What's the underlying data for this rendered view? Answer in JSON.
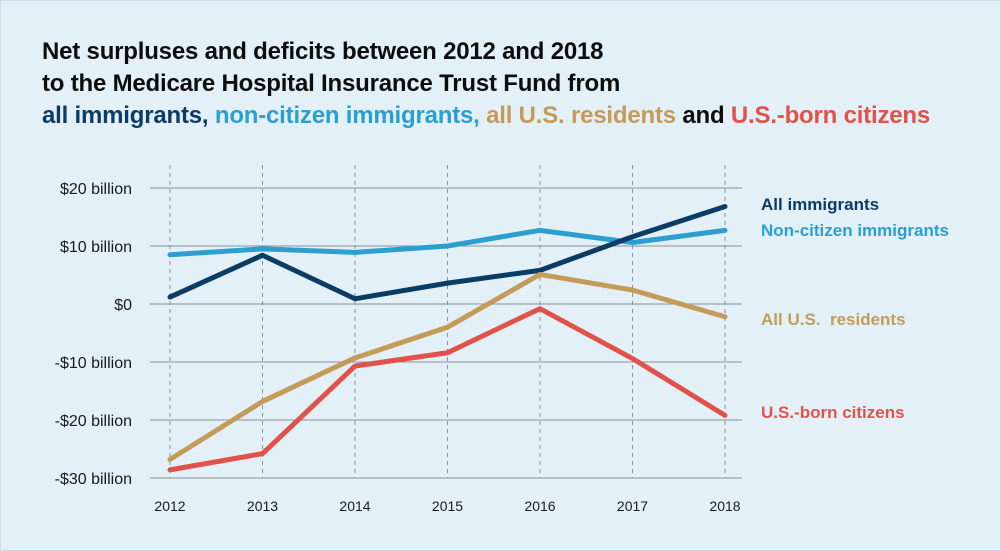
{
  "title": {
    "line1": "Net surpluses and deficits between 2012 and 2018",
    "line2": "to the Medicare Hospital Insurance Trust Fund from",
    "line3": [
      {
        "text": "all immigrants,",
        "color": "#0b3c66"
      },
      {
        "text": "non-citizen immigrants,",
        "color": "#2a9fd0"
      },
      {
        "text": "all U.S. residents",
        "color": "#c49b57"
      },
      {
        "text": "and",
        "color": "#0d0d0d"
      },
      {
        "text": "U.S.-born citizens",
        "color": "#e0524a"
      }
    ]
  },
  "chart_data": {
    "type": "line",
    "x": [
      2012,
      2013,
      2014,
      2015,
      2016,
      2017,
      2018
    ],
    "y_ticks": [
      {
        "value": 20,
        "label": "$20 billion"
      },
      {
        "value": 10,
        "label": "$10 billion"
      },
      {
        "value": 0,
        "label": "$0"
      },
      {
        "value": -10,
        "label": "-$10 billion"
      },
      {
        "value": -20,
        "label": "-$20 billion"
      },
      {
        "value": -30,
        "label": "-$30 billion"
      }
    ],
    "ylim": [
      -30,
      20
    ],
    "grid": true,
    "series": [
      {
        "name": "All immigrants",
        "color": "#0b3c66",
        "values": [
          1.2,
          8.4,
          0.9,
          3.6,
          5.8,
          11.6,
          16.8
        ]
      },
      {
        "name": "Non-citizen immigrants",
        "color": "#2a9fd0",
        "values": [
          8.5,
          9.5,
          8.9,
          10.0,
          12.7,
          10.6,
          12.7
        ]
      },
      {
        "name": "All U.S.  residents",
        "color": "#c49b57",
        "values": [
          -26.8,
          -16.8,
          -9.3,
          -4.0,
          5.1,
          2.4,
          -2.2
        ]
      },
      {
        "name": "U.S.-born citizens",
        "color": "#e0524a",
        "values": [
          -28.6,
          -25.8,
          -10.7,
          -8.4,
          -0.8,
          -9.4,
          -19.2
        ]
      }
    ]
  }
}
